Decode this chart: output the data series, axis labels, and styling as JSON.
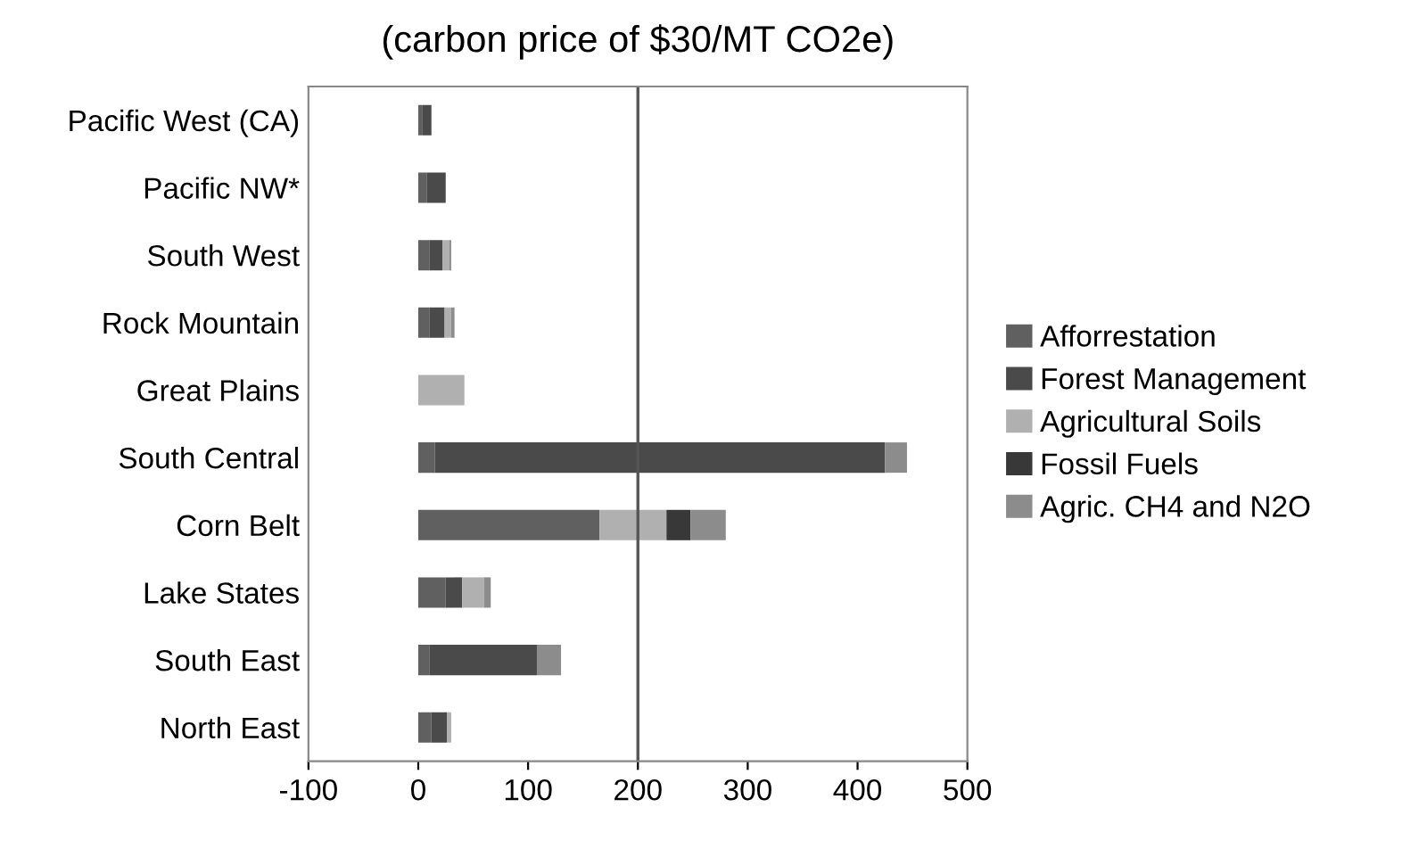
{
  "chart_data": {
    "type": "bar",
    "orientation": "horizontal",
    "stacked": true,
    "title": "(carbon price of $30/MT CO2e)",
    "categories": [
      "Pacific West (CA)",
      "Pacific NW*",
      "South West",
      "Rock Mountain",
      "Great Plains",
      "South Central",
      "Corn Belt",
      "Lake States",
      "South East",
      "North East"
    ],
    "series": [
      {
        "name": "Afforrestation",
        "color": "#606060",
        "values": [
          4,
          8,
          10,
          10,
          0,
          15,
          165,
          25,
          10,
          12
        ]
      },
      {
        "name": "Forest Management",
        "color": "#4a4a4a",
        "values": [
          8,
          17,
          12,
          14,
          0,
          410,
          0,
          15,
          98,
          14
        ]
      },
      {
        "name": "Agricultural Soils",
        "color": "#b0b0b0",
        "values": [
          0,
          0,
          6,
          6,
          42,
          0,
          61,
          20,
          0,
          4
        ]
      },
      {
        "name": "Fossil Fuels",
        "color": "#383838",
        "values": [
          0,
          0,
          0,
          0,
          0,
          0,
          22,
          0,
          0,
          0
        ]
      },
      {
        "name": "Agric. CH4 and N2O",
        "color": "#8c8c8c",
        "values": [
          0,
          0,
          2,
          3,
          0,
          20,
          32,
          6,
          22,
          0
        ]
      }
    ],
    "xlim": [
      -100,
      500
    ],
    "xticks": [
      -100,
      0,
      100,
      200,
      300,
      400,
      500
    ],
    "ref_lines": [
      {
        "axis": "x",
        "value": 200,
        "color": "#555555"
      }
    ],
    "legend": "right",
    "grid": false
  }
}
